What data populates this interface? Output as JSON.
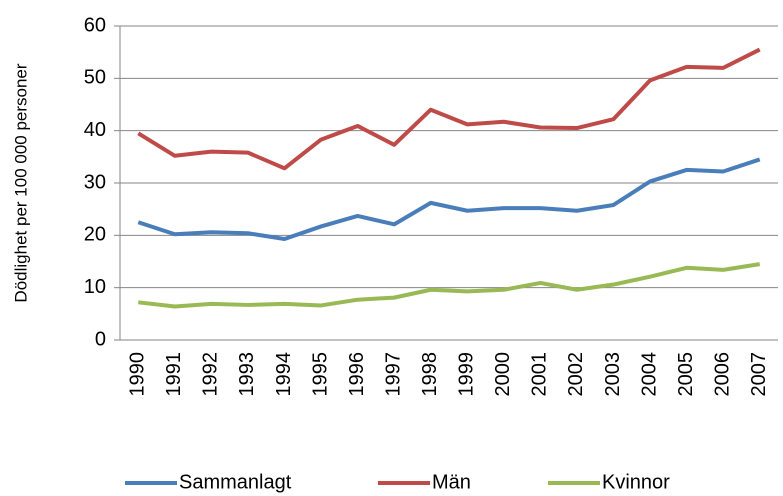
{
  "chart_data": {
    "type": "line",
    "y_label": "Dödlighet per 100 000 personer",
    "categories": [
      "1990",
      "1991",
      "1992",
      "1993",
      "1994",
      "1995",
      "1996",
      "1997",
      "1998",
      "1999",
      "2000",
      "2001",
      "2002",
      "2003",
      "2004",
      "2005",
      "2006",
      "2007"
    ],
    "series": [
      {
        "name": "Sammanlagt",
        "color": "#4a7ebb",
        "values": [
          22.5,
          20.2,
          20.6,
          20.4,
          19.3,
          21.7,
          23.7,
          22.1,
          26.2,
          24.7,
          25.2,
          25.2,
          24.7,
          25.8,
          30.3,
          32.5,
          32.2,
          34.5
        ]
      },
      {
        "name": "Män",
        "color": "#be4b48",
        "values": [
          39.5,
          35.2,
          36,
          35.8,
          32.8,
          38.3,
          40.9,
          37.3,
          44,
          41.2,
          41.7,
          40.6,
          40.5,
          42.2,
          49.6,
          52.2,
          52,
          55.5
        ]
      },
      {
        "name": "Kvinnor",
        "color": "#98b954",
        "values": [
          7.2,
          6.4,
          6.9,
          6.7,
          6.9,
          6.6,
          7.7,
          8.1,
          9.6,
          9.3,
          9.6,
          10.9,
          9.6,
          10.6,
          12.1,
          13.8,
          13.4,
          14.5
        ]
      }
    ],
    "ylim": [
      0,
      60
    ],
    "yticks": [
      0,
      10,
      20,
      30,
      40,
      50,
      60
    ],
    "grid": true,
    "legend": "bottom"
  }
}
